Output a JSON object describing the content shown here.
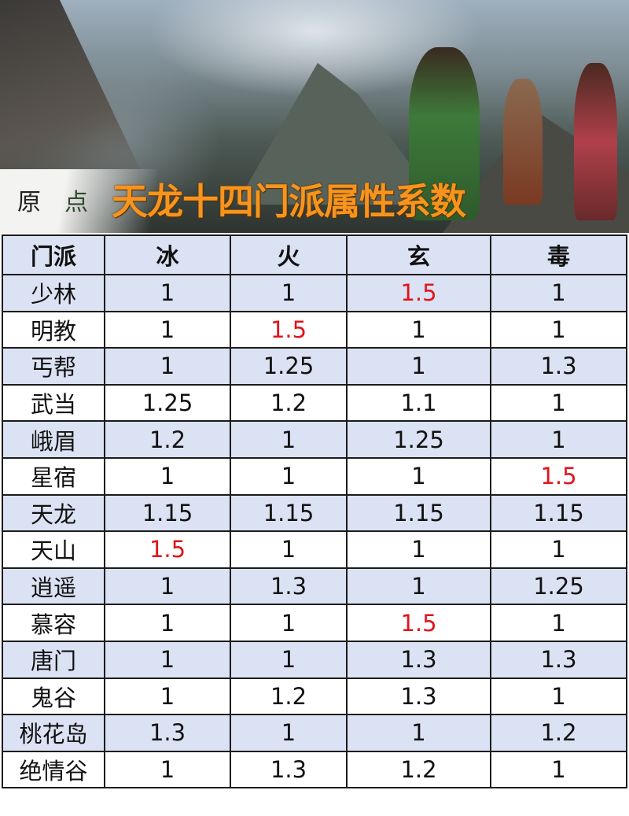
{
  "banner": {
    "title": "天龙十四门派属性系数",
    "logo_text": "原点"
  },
  "colors": {
    "title": "#f7941d",
    "highlight": "#e0141c",
    "row_shade": "#dbe2f3"
  },
  "table": {
    "headers": [
      "门派",
      "冰",
      "火",
      "玄",
      "毒"
    ],
    "rows": [
      [
        "少林",
        "1",
        "1",
        "1.5",
        "1"
      ],
      [
        "明教",
        "1",
        "1.5",
        "1",
        "1"
      ],
      [
        "丐帮",
        "1",
        "1.25",
        "1",
        "1.3"
      ],
      [
        "武当",
        "1.25",
        "1.2",
        "1.1",
        "1"
      ],
      [
        "峨眉",
        "1.2",
        "1",
        "1.25",
        "1"
      ],
      [
        "星宿",
        "1",
        "1",
        "1",
        "1.5"
      ],
      [
        "天龙",
        "1.15",
        "1.15",
        "1.15",
        "1.15"
      ],
      [
        "天山",
        "1.5",
        "1",
        "1",
        "1"
      ],
      [
        "逍遥",
        "1",
        "1.3",
        "1",
        "1.25"
      ],
      [
        "慕容",
        "1",
        "1",
        "1.5",
        "1"
      ],
      [
        "唐门",
        "1",
        "1",
        "1.3",
        "1.3"
      ],
      [
        "鬼谷",
        "1",
        "1.2",
        "1.3",
        "1"
      ],
      [
        "桃花岛",
        "1.3",
        "1",
        "1",
        "1.2"
      ],
      [
        "绝情谷",
        "1",
        "1.3",
        "1.2",
        "1"
      ]
    ]
  }
}
